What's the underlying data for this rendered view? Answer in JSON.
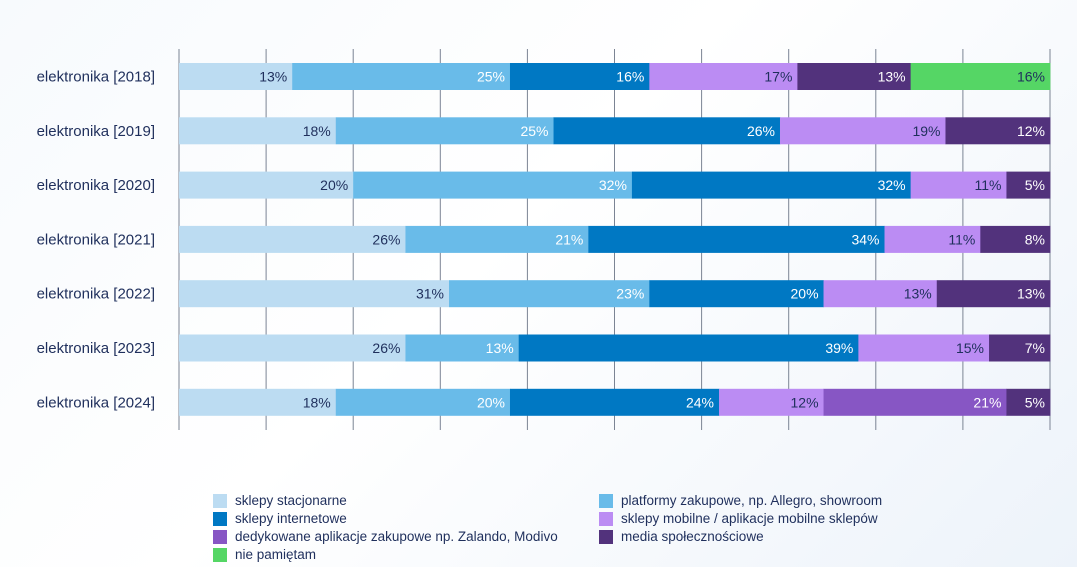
{
  "chart_data": {
    "type": "bar",
    "orientation": "horizontal",
    "stacked": true,
    "percent": true,
    "categories": [
      "elektronika [2018]",
      "elektronika [2019]",
      "elektronika [2020]",
      "elektronika [2021]",
      "elektronika [2022]",
      "elektronika [2023]",
      "elektronika [2024]"
    ],
    "series": [
      {
        "key": "stacjonarne",
        "name": "sklepy stacjonarne",
        "color": "#bcdcf2",
        "values": [
          13,
          18,
          20,
          26,
          31,
          26,
          18
        ]
      },
      {
        "key": "platformy",
        "name": "platformy zakupowe, np. Allegro, showroom",
        "color": "#69bbe9",
        "values": [
          25,
          25,
          32,
          21,
          23,
          13,
          20
        ]
      },
      {
        "key": "internetowe",
        "name": "sklepy internetowe",
        "color": "#0078c3",
        "values": [
          16,
          26,
          32,
          34,
          20,
          39,
          24
        ]
      },
      {
        "key": "mobilne",
        "name": "sklepy mobilne / aplikacje mobilne sklepów",
        "color": "#bb8cf3",
        "values": [
          17,
          19,
          11,
          11,
          13,
          15,
          12
        ]
      },
      {
        "key": "dedykowane",
        "name": "dedykowane aplikacje zakupowe np. Zalando, Modivo",
        "color": "#8756c4",
        "values": [
          null,
          null,
          null,
          null,
          null,
          null,
          21
        ]
      },
      {
        "key": "media",
        "name": "media społecznościowe",
        "color": "#52327c",
        "values": [
          13,
          12,
          5,
          8,
          13,
          7,
          5
        ]
      },
      {
        "key": "nie_pamietam",
        "name": "nie pamiętam",
        "color": "#55d665",
        "values": [
          16,
          null,
          null,
          null,
          null,
          null,
          null
        ]
      }
    ],
    "label_colors": {
      "stacjonarne": "#1f2f5c",
      "platformy": "#ffffff",
      "internetowe": "#ffffff",
      "mobilne": "#1f2f5c",
      "dedykowane": "#ffffff",
      "media": "#ffffff",
      "nie_pamietam": "#1f2f5c"
    },
    "value_suffix": "%",
    "grid": true,
    "legend_position": "bottom",
    "legend_order": [
      "stacjonarne",
      "platformy",
      "internetowe",
      "mobilne",
      "dedykowane",
      "media",
      "nie_pamietam"
    ]
  }
}
